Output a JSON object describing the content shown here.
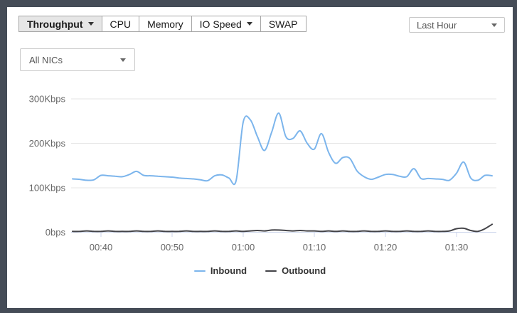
{
  "frame": {
    "bg": "#454c57",
    "panel_bg": "#ffffff"
  },
  "header": {
    "tabs": [
      {
        "label": "Throughput",
        "caret": true,
        "active": true
      },
      {
        "label": "CPU",
        "caret": false,
        "active": false
      },
      {
        "label": "Memory",
        "caret": false,
        "active": false
      },
      {
        "label": "IO Speed",
        "caret": true,
        "active": false
      },
      {
        "label": "SWAP",
        "caret": false,
        "active": false
      }
    ],
    "time_range": {
      "value": "Last Hour"
    }
  },
  "filters": {
    "nic": {
      "value": "All NICs"
    }
  },
  "chart_data": {
    "type": "line",
    "title": "",
    "xlabel": "",
    "ylabel": "",
    "unit": "Kbps",
    "smooth": true,
    "grid": true,
    "legend_position": "bottom",
    "ylim": [
      0,
      300
    ],
    "y_ticks": [
      {
        "label": "0bps",
        "value": 0
      },
      {
        "label": "100Kbps",
        "value": 100
      },
      {
        "label": "200Kbps",
        "value": 200
      },
      {
        "label": "300Kbps",
        "value": 300
      }
    ],
    "x_labels": [
      "00:40",
      "00:50",
      "01:00",
      "01:10",
      "01:20",
      "01:30"
    ],
    "times": [
      "00:36",
      "00:37",
      "00:38",
      "00:39",
      "00:40",
      "00:41",
      "00:42",
      "00:43",
      "00:44",
      "00:45",
      "00:46",
      "00:47",
      "00:48",
      "00:49",
      "00:50",
      "00:51",
      "00:52",
      "00:53",
      "00:54",
      "00:55",
      "00:56",
      "00:57",
      "00:58",
      "00:59",
      "01:00",
      "01:01",
      "01:02",
      "01:03",
      "01:04",
      "01:05",
      "01:06",
      "01:07",
      "01:08",
      "01:09",
      "01:10",
      "01:11",
      "01:12",
      "01:13",
      "01:14",
      "01:15",
      "01:16",
      "01:17",
      "01:18",
      "01:19",
      "01:20",
      "01:21",
      "01:22",
      "01:23",
      "01:24",
      "01:25",
      "01:26",
      "01:27",
      "01:28",
      "01:29",
      "01:30",
      "01:31",
      "01:32",
      "01:33",
      "01:34",
      "01:35"
    ],
    "series": [
      {
        "name": "Inbound",
        "color": "#7cb5ec",
        "values": [
          120,
          119,
          117,
          118,
          128,
          127,
          126,
          125,
          130,
          137,
          128,
          127,
          126,
          125,
          124,
          122,
          121,
          120,
          118,
          116,
          127,
          129,
          122,
          116,
          248,
          253,
          215,
          184,
          225,
          268,
          215,
          211,
          228,
          200,
          187,
          222,
          180,
          155,
          168,
          166,
          138,
          125,
          119,
          124,
          130,
          130,
          126,
          125,
          143,
          121,
          121,
          120,
          119,
          117,
          133,
          158,
          122,
          117,
          128,
          127
        ]
      },
      {
        "name": "Outbound",
        "color": "#434348",
        "values": [
          2,
          2,
          3,
          2,
          2,
          3,
          2,
          2,
          2,
          3,
          2,
          2,
          3,
          2,
          2,
          2,
          3,
          2,
          2,
          2,
          3,
          2,
          2,
          3,
          2,
          3,
          4,
          3,
          5,
          5,
          4,
          3,
          4,
          3,
          3,
          2,
          3,
          2,
          3,
          2,
          2,
          3,
          2,
          2,
          3,
          2,
          2,
          3,
          2,
          2,
          3,
          2,
          2,
          3,
          8,
          9,
          4,
          2,
          8,
          18
        ]
      }
    ],
    "colors": {
      "grid": "#e6e6e6",
      "axis": "#ccd6eb",
      "tick": "#ccd6eb",
      "label": "#666666"
    }
  }
}
